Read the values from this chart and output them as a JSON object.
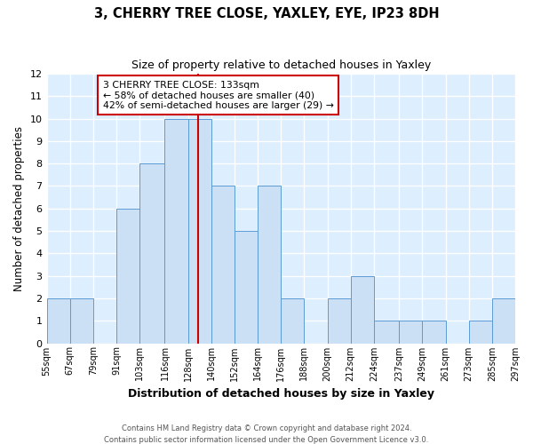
{
  "title1": "3, CHERRY TREE CLOSE, YAXLEY, EYE, IP23 8DH",
  "title2": "Size of property relative to detached houses in Yaxley",
  "xlabel": "Distribution of detached houses by size in Yaxley",
  "ylabel": "Number of detached properties",
  "bin_edges": [
    55,
    67,
    79,
    91,
    103,
    116,
    128,
    140,
    152,
    164,
    176,
    188,
    200,
    212,
    224,
    237,
    249,
    261,
    273,
    285,
    297
  ],
  "counts": [
    2,
    2,
    0,
    6,
    8,
    10,
    10,
    7,
    5,
    7,
    2,
    0,
    2,
    3,
    1,
    1,
    1,
    0,
    1,
    2
  ],
  "bar_color": "#cce0f5",
  "bar_edgecolor": "#5b9bd5",
  "vline_x": 133,
  "vline_color": "#cc0000",
  "ylim": [
    0,
    12
  ],
  "yticks": [
    0,
    1,
    2,
    3,
    4,
    5,
    6,
    7,
    8,
    9,
    10,
    11,
    12
  ],
  "annotation_line1": "3 CHERRY TREE CLOSE: 133sqm",
  "annotation_line2": "← 58% of detached houses are smaller (40)",
  "annotation_line3": "42% of semi-detached houses are larger (29) →",
  "footer1": "Contains HM Land Registry data © Crown copyright and database right 2024.",
  "footer2": "Contains public sector information licensed under the Open Government Licence v3.0.",
  "background_color": "#ddeeff",
  "grid_color": "#ffffff"
}
